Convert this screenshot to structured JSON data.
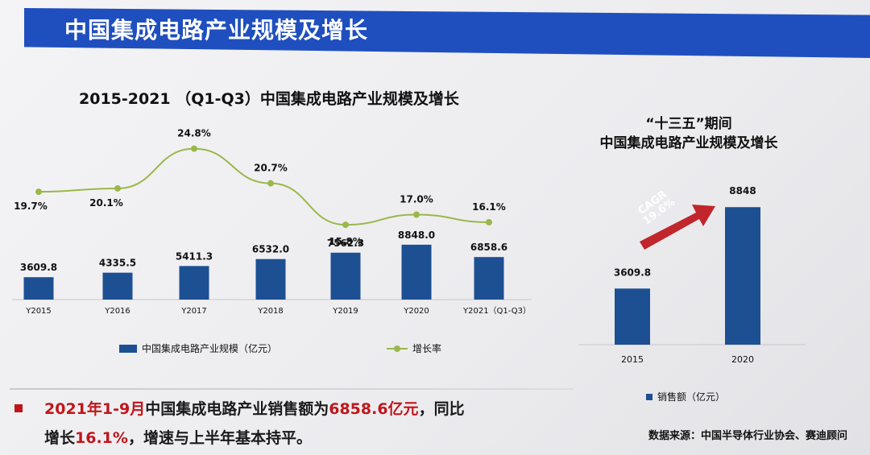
{
  "header": {
    "title": "中国集成电路产业规模及增长"
  },
  "left_chart": {
    "title": "2015-2021 （Q1-Q3）中国集成电路产业规模及增长",
    "legend": {
      "bar": "中国集成电路产业规模（亿元）",
      "line": "增长率"
    }
  },
  "right_chart": {
    "title_line1": "“十三五”期间",
    "title_line2": "中国集成电路产业规模及增长",
    "cagr_label": "CAGR",
    "cagr_value": "19.6%",
    "legend": "销售额（亿元）"
  },
  "summary": {
    "part1": "2021年1-9月",
    "part2": "中国集成电路产业销售额为",
    "part3": "6858.6亿元",
    "part4": "，同比",
    "part5": "增长",
    "part6": "16.1%",
    "part7": "，增速与上半年基本持平。"
  },
  "source": "数据来源：中国半导体行业协会、赛迪顾问",
  "colors": {
    "bar": "#1d4f93",
    "line": "#9ab84a",
    "banner": "#1f4fbf",
    "highlight": "#c0161b"
  },
  "chart_data": [
    {
      "type": "bar+line",
      "categories": [
        "Y2015",
        "Y2016",
        "Y2017",
        "Y2018",
        "Y2019",
        "Y2020",
        "Y2021（Q1-Q3）"
      ],
      "series": [
        {
          "name": "中国集成电路产业规模（亿元）",
          "type": "bar",
          "values": [
            3609.8,
            4335.5,
            5411.3,
            6532.0,
            7562.3,
            8848.0,
            6858.6
          ],
          "labels": [
            "3609.8",
            "4335.5",
            "5411.3",
            "6532.0",
            "7562.3",
            "8848.0",
            "6858.6"
          ]
        },
        {
          "name": "增长率",
          "type": "line",
          "values": [
            19.7,
            20.1,
            24.8,
            20.7,
            15.8,
            17.0,
            16.1
          ],
          "labels": [
            "19.7%",
            "20.1%",
            "24.8%",
            "20.7%",
            "15.8%",
            "17.0%",
            "16.1%"
          ]
        }
      ],
      "grid": false,
      "legend_position": "bottom"
    },
    {
      "type": "bar",
      "categories": [
        "2015",
        "2020"
      ],
      "values": [
        3609.8,
        8848
      ],
      "labels": [
        "3609.8",
        "8848"
      ],
      "series_name": "销售额（亿元）",
      "annotation": "CAGR 19.6%",
      "grid": false,
      "legend_position": "bottom"
    }
  ]
}
